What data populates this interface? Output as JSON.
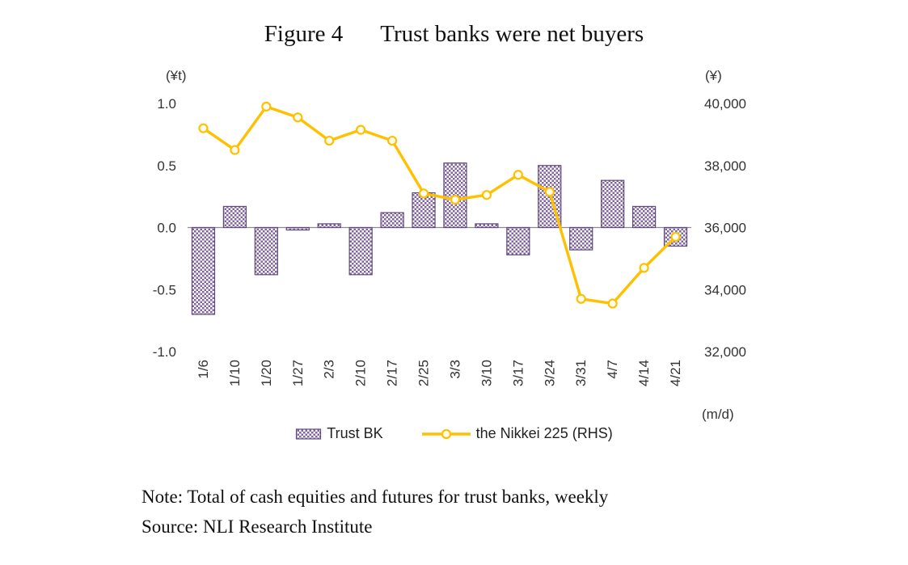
{
  "title": {
    "figure_label": "Figure 4",
    "text": "Trust banks were net buyers"
  },
  "axes": {
    "left_unit": "(¥t)",
    "right_unit": "(¥)",
    "x_unit": "(m/d)"
  },
  "legend": {
    "bars": "Trust BK",
    "line": "the Nikkei 225 (RHS)"
  },
  "notes": {
    "note": "Note: Total of cash equities and futures for trust banks, weekly",
    "source": "Source: NLI Research Institute"
  },
  "chart_data": {
    "type": "bar+line",
    "title": "Figure 4  Trust banks were net buyers",
    "categories": [
      "1/6",
      "1/10",
      "1/20",
      "1/27",
      "2/3",
      "2/10",
      "2/17",
      "2/25",
      "3/3",
      "3/10",
      "3/17",
      "3/24",
      "3/31",
      "4/7",
      "4/14",
      "4/21"
    ],
    "series": [
      {
        "name": "Trust BK",
        "chart_type": "bar",
        "axis": "left",
        "values": [
          -0.7,
          0.17,
          -0.38,
          -0.02,
          0.03,
          -0.38,
          0.12,
          0.28,
          0.52,
          0.03,
          -0.22,
          0.5,
          -0.18,
          0.38,
          0.17,
          -0.15
        ]
      },
      {
        "name": "the Nikkei 225 (RHS)",
        "chart_type": "line",
        "axis": "right",
        "values": [
          39200,
          38500,
          39900,
          39550,
          38800,
          39150,
          38800,
          37100,
          36900,
          37050,
          37700,
          37150,
          33700,
          33550,
          34700,
          35700
        ]
      }
    ],
    "left_axis": {
      "label": "(¥t)",
      "min": -1.0,
      "max": 1.0,
      "ticks": [
        1.0,
        0.5,
        0.0,
        -0.5,
        -1.0
      ],
      "tick_labels": [
        "1.0",
        "0.5",
        "0.0",
        "-0.5",
        "-1.0"
      ]
    },
    "right_axis": {
      "label": "(¥)",
      "min": 32000,
      "max": 40000,
      "ticks": [
        40000,
        38000,
        36000,
        34000,
        32000
      ],
      "tick_labels": [
        "40,000",
        "38,000",
        "36,000",
        "34,000",
        "32,000"
      ]
    },
    "x_axis": {
      "label": "(m/d)"
    },
    "grid": "off",
    "legend_position": "bottom",
    "colors": {
      "bar_fill": "#8064A2",
      "bar_stroke": "#604A7B",
      "line": "#FFC000",
      "marker_fill": "#FFFDF2",
      "zero_line": "#8c8c8c"
    }
  }
}
